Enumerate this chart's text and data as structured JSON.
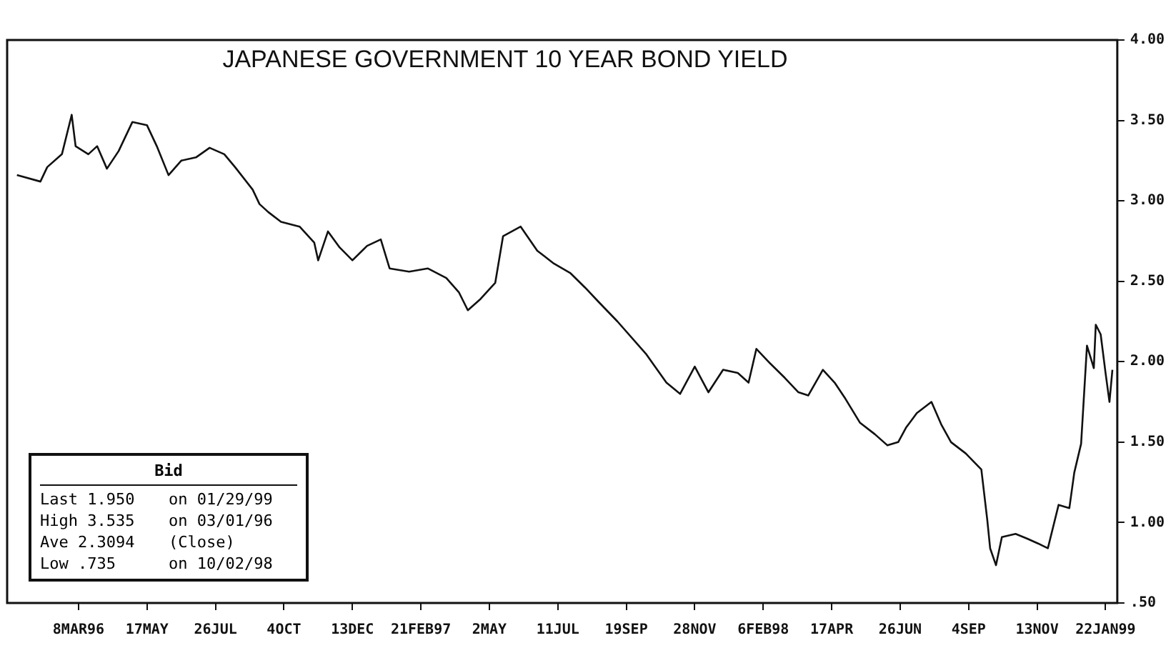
{
  "chart_data": {
    "type": "line",
    "title": "JAPANESE GOVERNMENT 10 YEAR BOND YIELD",
    "series": [
      {
        "color": "#111111",
        "x": [
          "1996-01-05",
          "1996-01-29",
          "1996-02-05",
          "1996-02-20",
          "1996-03-01",
          "1996-03-05",
          "1996-03-18",
          "1996-03-27",
          "1996-04-06",
          "1996-04-18",
          "1996-05-02",
          "1996-05-17",
          "1996-05-27",
          "1996-06-08",
          "1996-06-21",
          "1996-07-06",
          "1996-07-20",
          "1996-08-04",
          "1996-08-15",
          "1996-09-02",
          "1996-09-09",
          "1996-09-18",
          "1996-10-01",
          "1996-10-20",
          "1996-11-04",
          "1996-11-08",
          "1996-11-18",
          "1996-11-30",
          "1996-12-13",
          "1996-12-28",
          "1997-01-11",
          "1997-01-20",
          "1997-02-09",
          "1997-02-28",
          "1997-03-19",
          "1997-04-01",
          "1997-04-10",
          "1997-04-23",
          "1997-05-08",
          "1997-05-16",
          "1997-06-03",
          "1997-06-20",
          "1997-07-07",
          "1997-07-24",
          "1997-08-08",
          "1997-08-22",
          "1997-09-10",
          "1997-10-09",
          "1997-10-30",
          "1997-11-13",
          "1997-11-28",
          "1997-12-12",
          "1997-12-27",
          "1998-01-11",
          "1998-01-22",
          "1998-01-30",
          "1998-02-13",
          "1998-02-28",
          "1998-03-14",
          "1998-03-24",
          "1998-04-08",
          "1998-04-20",
          "1998-05-01",
          "1998-05-16",
          "1998-05-31",
          "1998-06-13",
          "1998-06-24",
          "1998-07-02",
          "1998-07-13",
          "1998-07-28",
          "1998-08-07",
          "1998-08-17",
          "1998-09-01",
          "1998-09-17",
          "1998-09-23",
          "1998-09-26",
          "1998-10-02",
          "1998-10-08",
          "1998-10-22",
          "1998-11-03",
          "1998-11-14",
          "1998-11-24",
          "1998-12-05",
          "1998-12-16",
          "1998-12-21",
          "1998-12-28",
          "1999-01-03",
          "1999-01-10",
          "1999-01-12",
          "1999-01-17",
          "1999-01-22",
          "1999-01-26",
          "1999-01-29"
        ],
        "values": [
          3.16,
          3.12,
          3.21,
          3.29,
          3.535,
          3.34,
          3.29,
          3.34,
          3.2,
          3.31,
          3.49,
          3.47,
          3.34,
          3.16,
          3.25,
          3.27,
          3.33,
          3.29,
          3.21,
          3.07,
          2.98,
          2.93,
          2.87,
          2.84,
          2.74,
          2.63,
          2.81,
          2.71,
          2.63,
          2.72,
          2.76,
          2.58,
          2.56,
          2.58,
          2.52,
          2.43,
          2.32,
          2.39,
          2.49,
          2.78,
          2.84,
          2.69,
          2.61,
          2.55,
          2.46,
          2.37,
          2.25,
          2.05,
          1.87,
          1.8,
          1.97,
          1.81,
          1.95,
          1.93,
          1.87,
          2.08,
          1.99,
          1.9,
          1.81,
          1.79,
          1.95,
          1.87,
          1.77,
          1.62,
          1.55,
          1.48,
          1.5,
          1.59,
          1.68,
          1.75,
          1.61,
          1.5,
          1.43,
          1.33,
          1.02,
          0.84,
          0.735,
          0.91,
          0.93,
          0.9,
          0.87,
          0.84,
          1.11,
          1.09,
          1.31,
          1.49,
          2.1,
          1.96,
          2.23,
          2.17,
          1.93,
          1.75,
          1.95
        ]
      }
    ],
    "xlim": [
      "1995-12-26",
      "1999-02-03"
    ],
    "xticks": [
      {
        "value": "1996-03-08",
        "label": "8MAR96"
      },
      {
        "value": "1996-05-17",
        "label": "17MAY"
      },
      {
        "value": "1996-07-26",
        "label": "26JUL"
      },
      {
        "value": "1996-10-04",
        "label": "4OCT"
      },
      {
        "value": "1996-12-13",
        "label": "13DEC"
      },
      {
        "value": "1997-02-21",
        "label": "21FEB97"
      },
      {
        "value": "1997-05-02",
        "label": "2MAY"
      },
      {
        "value": "1997-07-11",
        "label": "11JUL"
      },
      {
        "value": "1997-09-19",
        "label": "19SEP"
      },
      {
        "value": "1997-11-28",
        "label": "28NOV"
      },
      {
        "value": "1998-02-06",
        "label": "6FEB98"
      },
      {
        "value": "1998-04-17",
        "label": "17APR"
      },
      {
        "value": "1998-06-26",
        "label": "26JUN"
      },
      {
        "value": "1998-09-04",
        "label": "4SEP"
      },
      {
        "value": "1998-11-13",
        "label": "13NOV"
      },
      {
        "value": "1999-01-22",
        "label": "22JAN99"
      }
    ],
    "ylim": [
      0.5,
      4.0
    ],
    "yticks": [
      {
        "value": 0.5,
        "label": ".50"
      },
      {
        "value": 1.0,
        "label": "1.00"
      },
      {
        "value": 1.5,
        "label": "1.50"
      },
      {
        "value": 2.0,
        "label": "2.00"
      },
      {
        "value": 2.5,
        "label": "2.50"
      },
      {
        "value": 3.0,
        "label": "3.00"
      },
      {
        "value": 3.5,
        "label": "3.50"
      },
      {
        "value": 4.0,
        "label": "4.00"
      }
    ],
    "annotations": [
      "Bid",
      "Last 1.950",
      "on 01/29/99",
      "High 3.535",
      "on 03/01/96",
      "Ave  2.3094",
      "(Close)",
      "Low  .735",
      "on 10/02/98"
    ],
    "grid": false,
    "legend": false,
    "marker": "none",
    "line_style": "solid"
  }
}
